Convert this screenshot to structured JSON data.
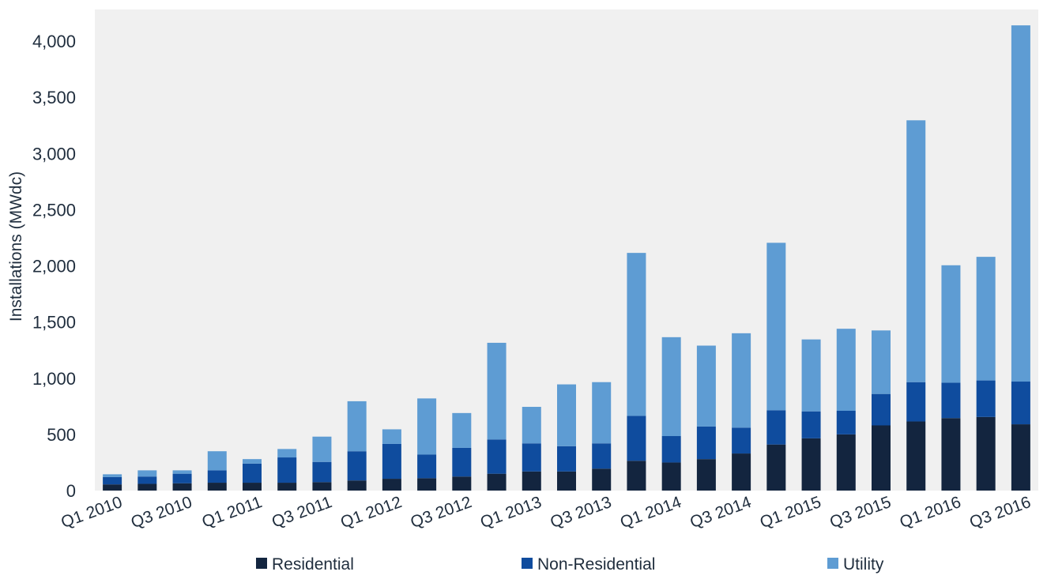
{
  "chart_data": {
    "type": "bar",
    "stacked": true,
    "ylabel": "Installations (MWdc)",
    "ylim": [
      0,
      4300
    ],
    "yticks": [
      0,
      500,
      1000,
      1500,
      2000,
      2500,
      3000,
      3500,
      4000
    ],
    "ytick_labels": [
      "0",
      "500",
      "1,000",
      "1,500",
      "2,000",
      "2,500",
      "3,000",
      "3,500",
      "4,000"
    ],
    "categories": [
      "Q1 2010",
      "Q2 2010",
      "Q3 2010",
      "Q4 2010",
      "Q1 2011",
      "Q2 2011",
      "Q3 2011",
      "Q4 2011",
      "Q1 2012",
      "Q2 2012",
      "Q3 2012",
      "Q4 2012",
      "Q1 2013",
      "Q2 2013",
      "Q3 2013",
      "Q4 2013",
      "Q1 2014",
      "Q2 2014",
      "Q3 2014",
      "Q4 2014",
      "Q1 2015",
      "Q2 2015",
      "Q3 2015",
      "Q4 2015",
      "Q1 2016",
      "Q2 2016",
      "Q3 2016"
    ],
    "category_labels_shown": [
      "Q1 2010",
      "",
      "Q3 2010",
      "",
      "Q1 2011",
      "",
      "Q3 2011",
      "",
      "Q1 2012",
      "",
      "Q3 2012",
      "",
      "Q1 2013",
      "",
      "Q3 2013",
      "",
      "Q1 2014",
      "",
      "Q3 2014",
      "",
      "Q1 2015",
      "",
      "Q3 2015",
      "",
      "Q1 2016",
      "",
      "Q3 2016"
    ],
    "grid": false,
    "legend_position": "bottom",
    "series": [
      {
        "name": "Residential",
        "color": "#13253f",
        "values": [
          55,
          60,
          65,
          70,
          70,
          70,
          75,
          90,
          105,
          110,
          125,
          150,
          170,
          170,
          195,
          265,
          250,
          280,
          330,
          410,
          465,
          500,
          580,
          615,
          645,
          655,
          590
        ]
      },
      {
        "name": "Non-Residential",
        "color": "#0f4c9e",
        "values": [
          65,
          65,
          85,
          110,
          170,
          225,
          180,
          260,
          310,
          210,
          255,
          305,
          250,
          225,
          225,
          400,
          235,
          290,
          230,
          305,
          240,
          210,
          280,
          350,
          315,
          325,
          380
        ]
      },
      {
        "name": "Utility",
        "color": "#5e9cd3",
        "values": [
          25,
          55,
          30,
          170,
          40,
          75,
          225,
          445,
          130,
          500,
          310,
          860,
          325,
          550,
          545,
          1450,
          880,
          720,
          840,
          1490,
          640,
          730,
          565,
          2330,
          1045,
          1100,
          3170
        ]
      }
    ]
  }
}
